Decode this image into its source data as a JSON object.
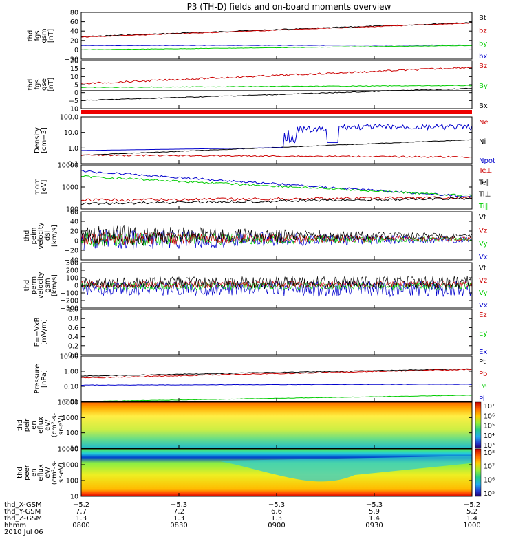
{
  "title": "P3 (TH-D) fields and on-board moments overview",
  "colors": {
    "black": "#000000",
    "red": "#cc0000",
    "green": "#00cc00",
    "blue": "#0000cc"
  },
  "panels": [
    {
      "id": "fgs-gsm",
      "ylabel": [
        "thd",
        "fgs",
        "gsm",
        "[nT]"
      ],
      "ticks": [
        "80",
        "60",
        "40",
        "20",
        "0",
        "−20"
      ],
      "legend": [
        {
          "text": "Bt",
          "color": "black"
        },
        {
          "text": "bz",
          "color": "red"
        },
        {
          "text": "by",
          "color": "green"
        },
        {
          "text": "bx",
          "color": "blue"
        }
      ]
    },
    {
      "id": "fgs-gse",
      "ylabel": [
        "thd",
        "fgs",
        "gse",
        "[nT]"
      ],
      "ticks": [
        "20",
        "15",
        "10",
        "5",
        "0",
        "−5",
        "−10"
      ],
      "legend": [
        {
          "text": "Bz",
          "color": "red"
        },
        {
          "text": "By",
          "color": "green"
        },
        {
          "text": "Bx",
          "color": "black"
        }
      ]
    },
    {
      "id": "density",
      "ylabel": [
        "Density",
        "[cm−3]"
      ],
      "ticks": [
        "100.0",
        "10.0",
        "1.0",
        "0.1"
      ],
      "legend": [
        {
          "text": "Ne",
          "color": "red"
        },
        {
          "text": "Ni",
          "color": "black"
        },
        {
          "text": "Npot",
          "color": "blue"
        }
      ]
    },
    {
      "id": "temp",
      "ylabel": [
        "mom",
        "[eV]"
      ],
      "ticks": [
        "10000",
        "1000",
        "100"
      ],
      "legend": [
        {
          "text": "Te⊥",
          "color": "red"
        },
        {
          "text": "Te∥",
          "color": "black"
        },
        {
          "text": "Ti⊥",
          "color": "black"
        },
        {
          "text": "Ti∥",
          "color": "green"
        }
      ]
    },
    {
      "id": "peim-vel",
      "ylabel": [
        "thd",
        "peim",
        "velocity",
        "dsl",
        "[km/s]"
      ],
      "ticks": [
        "60",
        "40",
        "20",
        "0",
        "−20",
        "−40"
      ],
      "legend": [
        {
          "text": "Vt",
          "color": "black"
        },
        {
          "text": "Vz",
          "color": "red"
        },
        {
          "text": "Vy",
          "color": "green"
        },
        {
          "text": "Vx",
          "color": "blue"
        }
      ]
    },
    {
      "id": "perm-vel",
      "ylabel": [
        "thd",
        "perm",
        "velocity",
        "gsm",
        "[km/s]"
      ],
      "ticks": [
        "300",
        "200",
        "100",
        "0",
        "−100",
        "−200",
        "−300"
      ],
      "legend": [
        {
          "text": "Vt",
          "color": "black"
        },
        {
          "text": "Vz",
          "color": "red"
        },
        {
          "text": "Vy",
          "color": "green"
        },
        {
          "text": "Vx",
          "color": "blue"
        }
      ]
    },
    {
      "id": "efield",
      "ylabel": [
        "E=−VxB",
        "[mV/m]"
      ],
      "ticks": [
        "1.0",
        "0.8",
        "0.6",
        "0.4",
        "0.2",
        "0.0"
      ],
      "legend": [
        {
          "text": "Ez",
          "color": "red"
        },
        {
          "text": "Ey",
          "color": "green"
        },
        {
          "text": "Ex",
          "color": "blue"
        }
      ]
    },
    {
      "id": "pressure",
      "ylabel": [
        "Pressure",
        "[nPa]"
      ],
      "ticks": [
        "10.00",
        "1.00",
        "0.10",
        "0.01"
      ],
      "legend": [
        {
          "text": "Pt",
          "color": "black"
        },
        {
          "text": "Pb",
          "color": "red"
        },
        {
          "text": "Pe",
          "color": "green"
        },
        {
          "text": "Pi",
          "color": "blue"
        }
      ]
    },
    {
      "id": "peir",
      "ylabel": [
        "thd",
        "peir",
        "en",
        "eflux",
        "eV/",
        "(cm²-s-",
        "sr-eV)"
      ],
      "ticks": [
        "10000",
        "1000",
        "100",
        "10"
      ],
      "colorbar": [
        "10⁷",
        "10⁶",
        "10⁵",
        "10⁴",
        "10³"
      ]
    },
    {
      "id": "peer",
      "ylabel": [
        "thd",
        "peer",
        "en",
        "eflux",
        "eV/",
        "(cm²-s-",
        "sr-eV)"
      ],
      "ticks": [
        "10000",
        "1000",
        "100",
        "10"
      ],
      "colorbar": [
        "10⁸",
        "10⁷",
        "10⁶",
        "10⁵"
      ]
    }
  ],
  "bottom": {
    "rows": [
      {
        "label": "thd_X-GSM",
        "values": [
          "−5.2",
          "−5.3",
          "−5.3",
          "−5.3",
          "−5.2"
        ]
      },
      {
        "label": "thd_Y-GSM",
        "values": [
          "7.7",
          "7.2",
          "6.6",
          "5.9",
          "5.2"
        ]
      },
      {
        "label": "thd_Z-GSM",
        "values": [
          "1.3",
          "1.3",
          "1.3",
          "1.4",
          "1.4"
        ]
      },
      {
        "label": "hhmm",
        "values": [
          "0800",
          "0830",
          "0900",
          "0930",
          "1000"
        ]
      }
    ],
    "date": "2010 Jul 06"
  },
  "chart_data": {
    "type": "line",
    "title": "P3 (TH-D) fields and on-board moments overview",
    "x_range": [
      "0800",
      "1000"
    ],
    "series_panels": [
      {
        "panel": "fgs-gsm",
        "ylim": [
          -20,
          80
        ],
        "series": [
          {
            "name": "Bt",
            "x": [
              "0800",
              "1000"
            ],
            "values": [
              29,
              63
            ]
          },
          {
            "name": "bz",
            "x": [
              "0800",
              "1000"
            ],
            "values": [
              28,
              62
            ]
          },
          {
            "name": "by",
            "x": [
              "0800",
              "1000"
            ],
            "values": [
              0,
              10
            ]
          },
          {
            "name": "bx",
            "x": [
              "0800",
              "1000"
            ],
            "values": [
              9,
              10
            ]
          }
        ]
      },
      {
        "panel": "fgs-gse",
        "ylim": [
          -12,
          20
        ],
        "series": [
          {
            "name": "Bz",
            "x": [
              "0800",
              "1000"
            ],
            "values": [
              4,
              15
            ]
          },
          {
            "name": "By",
            "x": [
              "0800",
              "1000"
            ],
            "values": [
              2,
              3
            ]
          },
          {
            "name": "Bx",
            "x": [
              "0800",
              "1000"
            ],
            "values": [
              -6,
              3
            ]
          }
        ]
      },
      {
        "panel": "density",
        "scale": "log",
        "ylim": [
          0.1,
          200
        ],
        "series": [
          {
            "name": "Ni",
            "x": [
              "0800",
              "0900",
              "1000"
            ],
            "values": [
              0.3,
              0.6,
              3
            ]
          },
          {
            "name": "Npot",
            "x": [
              "0800",
              "0850",
              "0900",
              "0930",
              "1000"
            ],
            "values": [
              0.6,
              0.7,
              20,
              20,
              20
            ]
          },
          {
            "name": "Ne",
            "x": [
              "0800",
              "1000"
            ],
            "values": [
              0.3,
              0.3
            ]
          }
        ]
      },
      {
        "panel": "temp",
        "scale": "log",
        "ylim": [
          100,
          10000
        ],
        "series": [
          {
            "name": "Ti⊥",
            "x": [
              "0800",
              "1000"
            ],
            "values": [
              5000,
              500
            ]
          },
          {
            "name": "Ti∥",
            "x": [
              "0800",
              "1000"
            ],
            "values": [
              3000,
              400
            ]
          },
          {
            "name": "Te⊥",
            "x": [
              "0800",
              "1000"
            ],
            "values": [
              200,
              300
            ]
          },
          {
            "name": "Te∥",
            "x": [
              "0800",
              "1000"
            ],
            "values": [
              150,
              250
            ]
          }
        ]
      },
      {
        "panel": "pressure",
        "scale": "log",
        "ylim": [
          0.01,
          10
        ],
        "series": [
          {
            "name": "Pt",
            "x": [
              "0800",
              "1000"
            ],
            "values": [
              0.5,
              2
            ]
          },
          {
            "name": "Pb",
            "x": [
              "0800",
              "1000"
            ],
            "values": [
              0.4,
              1.8
            ]
          },
          {
            "name": "Pe",
            "x": [
              "0800",
              "1000"
            ],
            "values": [
              0.01,
              0.03
            ]
          },
          {
            "name": "Pi",
            "x": [
              "0800",
              "1000"
            ],
            "values": [
              0.2,
              0.2
            ]
          }
        ]
      }
    ]
  }
}
